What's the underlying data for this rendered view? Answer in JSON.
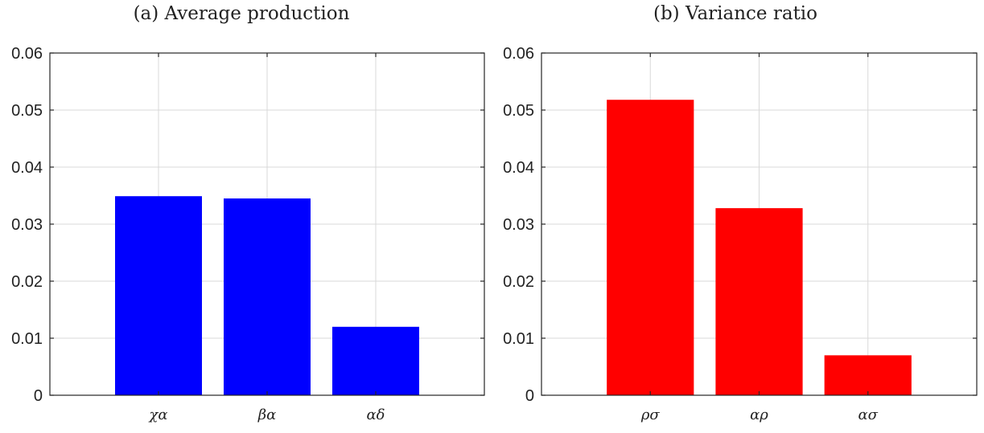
{
  "chart_data": [
    {
      "type": "bar",
      "title": "(a) Average production",
      "categories": [
        "χα",
        "βα",
        "αδ"
      ],
      "values": [
        0.0349,
        0.0345,
        0.012
      ],
      "color": "#0000ff",
      "ylim": [
        0,
        0.06
      ],
      "yticks": [
        "0",
        "0.01",
        "0.02",
        "0.03",
        "0.04",
        "0.05",
        "0.06"
      ],
      "grid": true
    },
    {
      "type": "bar",
      "title": "(b) Variance ratio",
      "categories": [
        "ρσ",
        "αρ",
        "ασ"
      ],
      "values": [
        0.0518,
        0.0328,
        0.007
      ],
      "color": "#ff0000",
      "ylim": [
        0,
        0.06
      ],
      "yticks": [
        "0",
        "0.01",
        "0.02",
        "0.03",
        "0.04",
        "0.05",
        "0.06"
      ],
      "grid": true
    }
  ]
}
